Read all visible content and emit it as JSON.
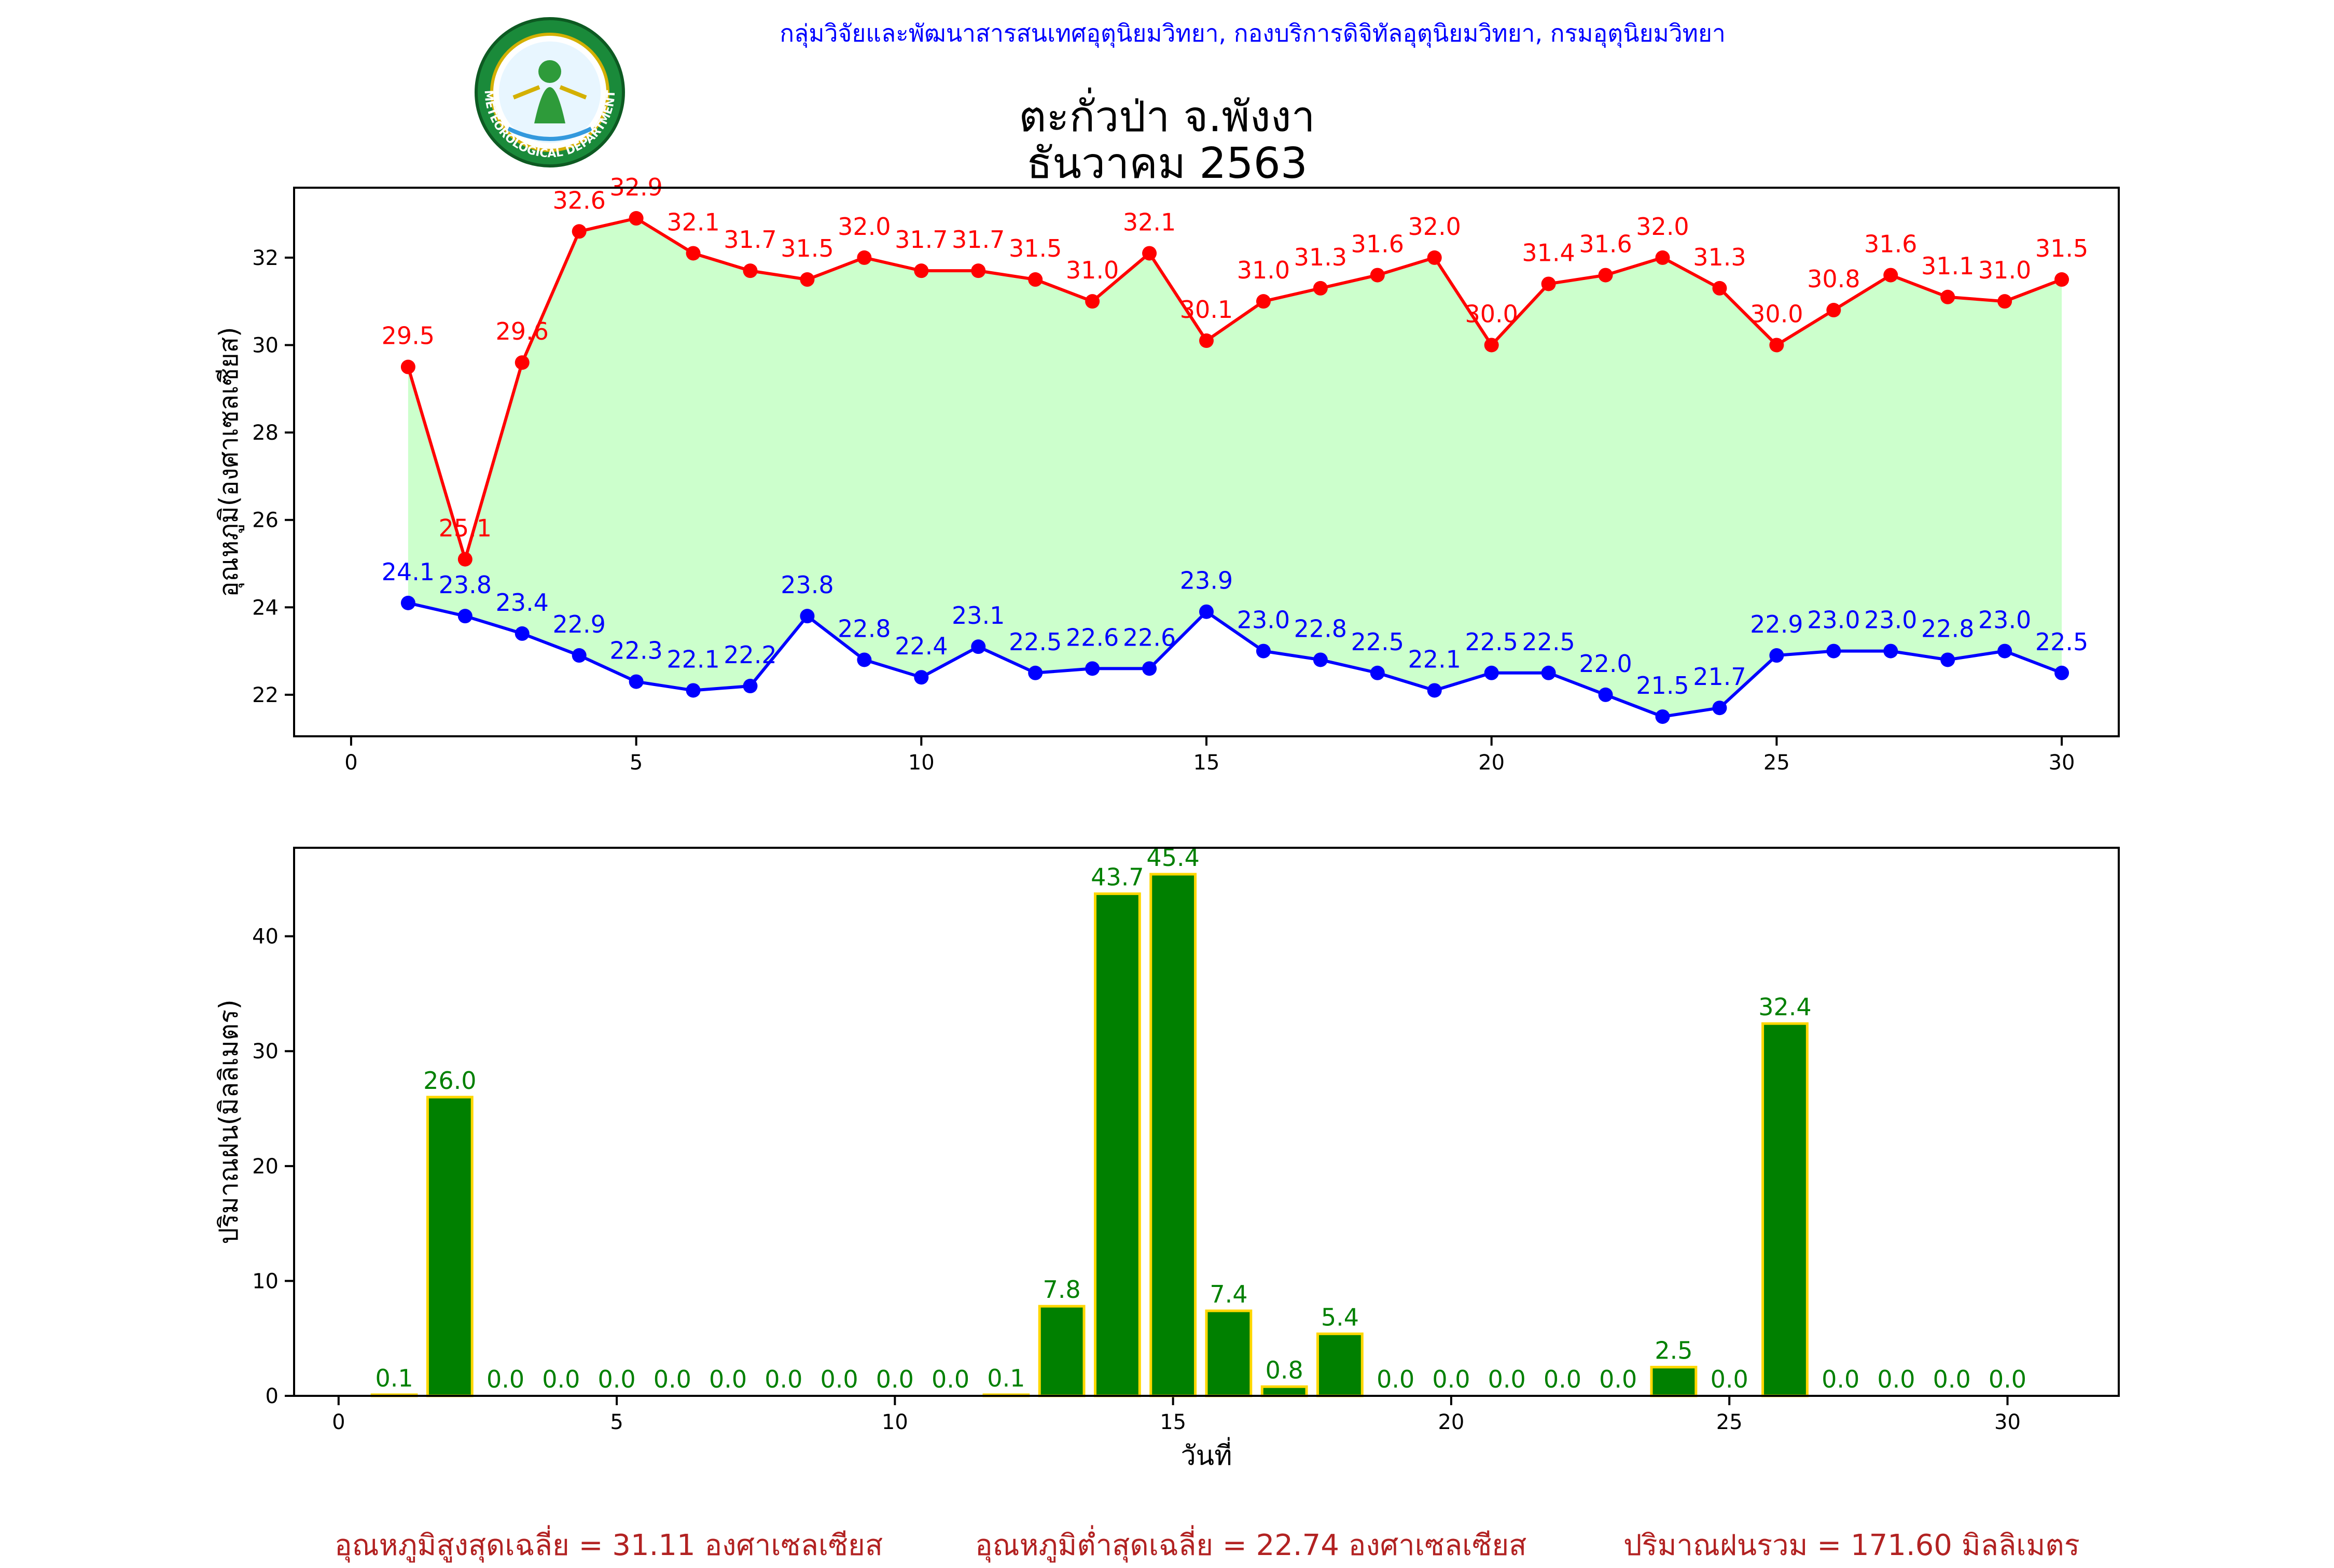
{
  "header": {
    "organization": "กลุ่มวิจัยและพัฒนาสารสนเทศอุตุนิยมวิทยา, กองบริการดิจิทัลอุตุนิยมวิทยา, กรมอุตุนิยมวิทยา",
    "station": "ตะกั่วป่า จ.พังงา",
    "period": "ธันวาคม 2563",
    "logo_text": "METEOROLOGICAL DEPARTMENT"
  },
  "footer": {
    "avg_max": "อุณหภูมิสูงสุดเฉลี่ย = 31.11 องศาเซลเซียส",
    "avg_min": "อุณหภูมิต่ำสุดเฉลี่ย = 22.74 องศาเซลเซียส",
    "rain_total": "ปริมาณฝนรวม = 171.60 มิลลิเมตร"
  },
  "colors": {
    "max_temp": "#ff0000",
    "min_temp": "#0000ff",
    "fill": "#ccffcc",
    "rain_bar": "#008000",
    "rain_edge": "#ffd700",
    "rain_label": "#008000",
    "footer": "#b22222",
    "org": "#0000ff"
  },
  "chart_data": [
    {
      "type": "line",
      "ylabel": "อุณหภูมิ(องศาเซลเซียส)",
      "xlabel": "",
      "xlim": [
        -1,
        31
      ],
      "ylim": [
        21.05,
        33.6
      ],
      "xticks": [
        0,
        5,
        10,
        15,
        20,
        25,
        30
      ],
      "yticks": [
        22,
        24,
        26,
        28,
        30,
        32
      ],
      "x": [
        1,
        2,
        3,
        4,
        5,
        6,
        7,
        8,
        9,
        10,
        11,
        12,
        13,
        14,
        15,
        16,
        17,
        18,
        19,
        20,
        21,
        22,
        23,
        24,
        25,
        26,
        27,
        28,
        29,
        30
      ],
      "series": [
        {
          "key": "max",
          "values": [
            29.5,
            25.1,
            29.6,
            32.6,
            32.9,
            32.1,
            31.7,
            31.5,
            32.0,
            31.7,
            31.7,
            31.5,
            31.0,
            32.1,
            30.1,
            31.0,
            31.3,
            31.6,
            32.0,
            30.0,
            31.4,
            31.6,
            32.0,
            31.3,
            30.0,
            30.8,
            31.6,
            31.1,
            31.0,
            31.5
          ],
          "labels": [
            "29.5",
            "25.1",
            "29.6",
            "32.6",
            "32.9",
            "32.1",
            "31.7",
            "31.5",
            "32.0",
            "31.7",
            "31.7",
            "31.5",
            "31.0",
            "32.1",
            "30.1",
            "31.0",
            "31.3",
            "31.6",
            "32.0",
            "30.0",
            "31.4",
            "31.6",
            "32.0",
            "31.3",
            "30.0",
            "30.8",
            "31.6",
            "31.1",
            "31.0",
            "31.5"
          ]
        },
        {
          "key": "min",
          "values": [
            24.1,
            23.8,
            23.4,
            22.9,
            22.3,
            22.1,
            22.2,
            23.8,
            22.8,
            22.4,
            23.1,
            22.5,
            22.6,
            22.6,
            23.9,
            23.0,
            22.8,
            22.5,
            22.1,
            22.5,
            22.5,
            22.0,
            21.5,
            21.7,
            22.9,
            23.0,
            23.0,
            22.8,
            23.0,
            22.5
          ],
          "labels": [
            "24.1",
            "23.8",
            "23.4",
            "22.9",
            "22.3",
            "22.1",
            "22.2",
            "23.8",
            "22.8",
            "22.4",
            "23.1",
            "22.5",
            "22.6",
            "22.6",
            "23.9",
            "23.0",
            "22.8",
            "22.5",
            "22.1",
            "22.5",
            "22.5",
            "22.0",
            "21.5",
            "21.7",
            "22.9",
            "23.0",
            "23.0",
            "22.8",
            "23.0",
            "22.5"
          ]
        }
      ],
      "fill_between": true,
      "grid": false
    },
    {
      "type": "bar",
      "ylabel": "ปริมาณฝน(มิลลิเมตร)",
      "xlabel": "วันที่",
      "xlim": [
        -0.8,
        32
      ],
      "ylim": [
        0,
        47.7
      ],
      "xticks": [
        0,
        5,
        10,
        15,
        20,
        25,
        30
      ],
      "yticks": [
        0,
        10,
        20,
        30,
        40
      ],
      "x": [
        1,
        2,
        3,
        4,
        5,
        6,
        7,
        8,
        9,
        10,
        11,
        12,
        13,
        14,
        15,
        16,
        17,
        18,
        19,
        20,
        21,
        22,
        23,
        24,
        25,
        26,
        27,
        28,
        29,
        30
      ],
      "values": [
        0.1,
        26.0,
        0.0,
        0.0,
        0.0,
        0.0,
        0.0,
        0.0,
        0.0,
        0.0,
        0.0,
        0.1,
        7.8,
        43.7,
        45.4,
        7.4,
        0.8,
        5.4,
        0.0,
        0.0,
        0.0,
        0.0,
        0.0,
        2.5,
        0.0,
        32.4,
        0.0,
        0.0,
        0.0,
        0.0
      ],
      "labels": [
        "0.1",
        "26.0",
        "0.0",
        "0.0",
        "0.0",
        "0.0",
        "0.0",
        "0.0",
        "0.0",
        "0.0",
        "0.0",
        "0.1",
        "7.8",
        "43.7",
        "45.4",
        "7.4",
        "0.8",
        "5.4",
        "0.0",
        "0.0",
        "0.0",
        "0.0",
        "0.0",
        "2.5",
        "0.0",
        "32.4",
        "0.0",
        "0.0",
        "0.0",
        "0.0"
      ],
      "grid": false
    }
  ]
}
